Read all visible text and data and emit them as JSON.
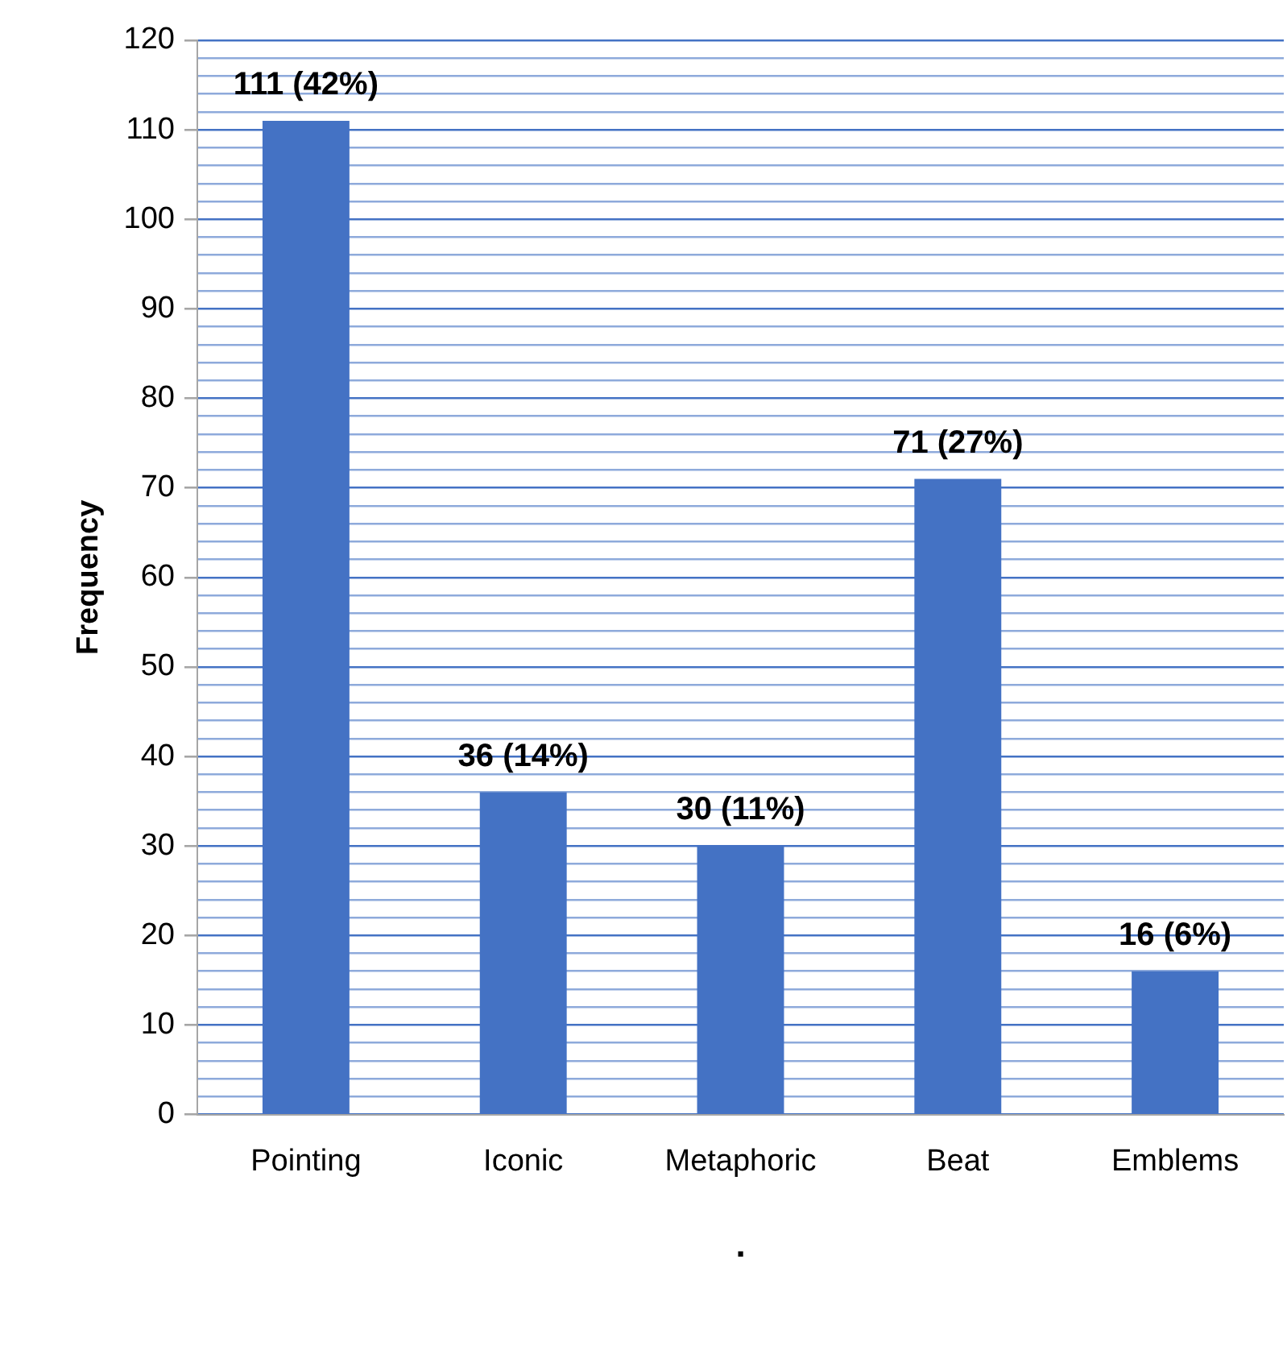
{
  "chart_data": {
    "type": "bar",
    "ylabel": "Frequency",
    "xlabel": ".",
    "categories": [
      "Pointing",
      "Iconic",
      "Metaphoric",
      "Beat",
      "Emblems"
    ],
    "values": [
      111,
      36,
      30,
      71,
      16
    ],
    "color": "#4472c4",
    "value_labels": [
      "111 (42%)",
      "36 (14%)",
      "30 (11%)",
      "71 (27%)",
      "16 (6%)"
    ],
    "ylim": [
      0,
      120
    ],
    "yticks": [
      0,
      {
        "value": 2,
        "label": null
      },
      {
        "value": 4,
        "label": null
      },
      {
        "value": 6,
        "label": null
      },
      {
        "value": 8,
        "label": null
      },
      10,
      {
        "value": 12,
        "label": null
      },
      {
        "value": 14,
        "label": null
      },
      {
        "value": 16,
        "label": null
      },
      {
        "value": 18,
        "label": null
      },
      20,
      {
        "value": 22,
        "label": null
      },
      {
        "value": 24,
        "label": null
      },
      {
        "value": 26,
        "label": null
      },
      {
        "value": 28,
        "label": null
      },
      30,
      {
        "value": 32,
        "label": null
      },
      {
        "value": 34,
        "label": null
      },
      {
        "value": 36,
        "label": null
      },
      {
        "value": 38,
        "label": null
      },
      40,
      {
        "value": 42,
        "label": null
      },
      {
        "value": 44,
        "label": null
      },
      {
        "value": 46,
        "label": null
      },
      {
        "value": 48,
        "label": null
      },
      50,
      {
        "value": 52,
        "label": null
      },
      {
        "value": 54,
        "label": null
      },
      {
        "value": 56,
        "label": null
      },
      {
        "value": 58,
        "label": null
      },
      60,
      {
        "value": 62,
        "label": null
      },
      {
        "value": 64,
        "label": null
      },
      {
        "value": 66,
        "label": null
      },
      {
        "value": 68,
        "label": null
      },
      70,
      {
        "value": 72,
        "label": null
      },
      {
        "value": 74,
        "label": null
      },
      {
        "value": 76,
        "label": null
      },
      {
        "value": 78,
        "label": null
      },
      80,
      {
        "value": 82,
        "label": null
      },
      {
        "value": 84,
        "label": null
      },
      {
        "value": 86,
        "label": null
      },
      {
        "value": 88,
        "label": null
      },
      90,
      {
        "value": 92,
        "label": null
      },
      {
        "value": 94,
        "label": null
      },
      {
        "value": 96,
        "label": null
      },
      {
        "value": 98,
        "label": null
      },
      100,
      {
        "value": 102,
        "label": null
      },
      {
        "value": 104,
        "label": null
      },
      {
        "value": 106,
        "label": null
      },
      {
        "value": 108,
        "label": null
      },
      110,
      {
        "value": 112,
        "label": null
      },
      {
        "value": 114,
        "label": null
      },
      {
        "value": 116,
        "label": null
      },
      {
        "value": 118,
        "label": null
      },
      120
    ],
    "grid": "y"
  }
}
